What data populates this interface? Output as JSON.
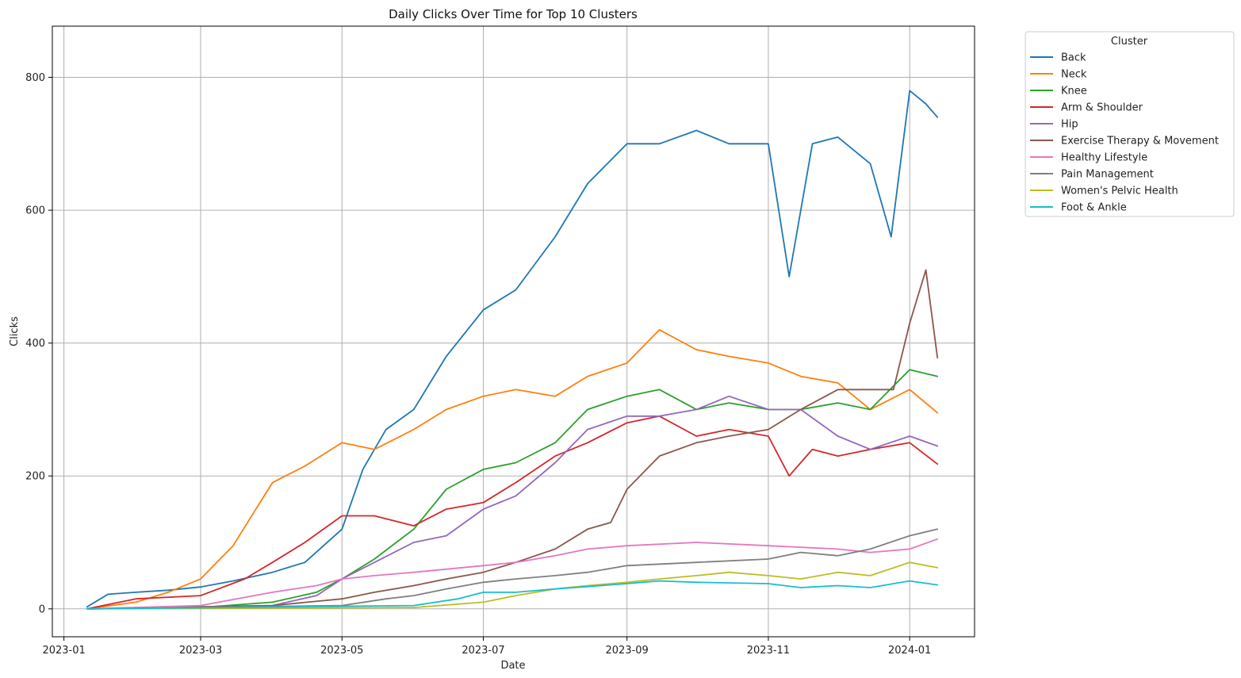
{
  "chart_data": {
    "type": "line",
    "title": "Daily Clicks Over Time for Top 10 Clusters",
    "xlabel": "Date",
    "ylabel": "Clicks",
    "x_type": "date",
    "xlim": [
      "2022-12-27",
      "2024-01-29"
    ],
    "ylim": [
      -42,
      877
    ],
    "xticks": [
      "2023-01-01",
      "2023-03-01",
      "2023-05-01",
      "2023-07-01",
      "2023-09-01",
      "2023-11-01",
      "2024-01-01"
    ],
    "xtick_labels": [
      "2023-01",
      "2023-03",
      "2023-05",
      "2023-07",
      "2023-09",
      "2023-11",
      "2024-01"
    ],
    "yticks": [
      0,
      200,
      400,
      600,
      800
    ],
    "grid": true,
    "legend": {
      "title": "Cluster",
      "placement": "outside upper right"
    },
    "series": [
      {
        "name": "Back",
        "color": "#1f77b4",
        "points": [
          [
            "2023-01-11",
            3
          ],
          [
            "2023-01-20",
            22
          ],
          [
            "2023-02-01",
            25
          ],
          [
            "2023-02-15",
            28
          ],
          [
            "2023-03-01",
            33
          ],
          [
            "2023-03-15",
            42
          ],
          [
            "2023-04-01",
            55
          ],
          [
            "2023-04-15",
            70
          ],
          [
            "2023-05-01",
            120
          ],
          [
            "2023-05-10",
            210
          ],
          [
            "2023-05-20",
            270
          ],
          [
            "2023-06-01",
            300
          ],
          [
            "2023-06-15",
            380
          ],
          [
            "2023-07-01",
            450
          ],
          [
            "2023-07-15",
            480
          ],
          [
            "2023-08-01",
            560
          ],
          [
            "2023-08-15",
            640
          ],
          [
            "2023-09-01",
            700
          ],
          [
            "2023-09-15",
            700
          ],
          [
            "2023-10-01",
            720
          ],
          [
            "2023-10-15",
            700
          ],
          [
            "2023-11-01",
            700
          ],
          [
            "2023-11-10",
            500
          ],
          [
            "2023-11-20",
            700
          ],
          [
            "2023-12-01",
            710
          ],
          [
            "2023-12-15",
            670
          ],
          [
            "2023-12-24",
            560
          ],
          [
            "2024-01-01",
            780
          ],
          [
            "2024-01-08",
            760
          ],
          [
            "2024-01-13",
            740
          ]
        ]
      },
      {
        "name": "Neck",
        "color": "#ff7f0e",
        "points": [
          [
            "2023-01-11",
            0
          ],
          [
            "2023-02-01",
            10
          ],
          [
            "2023-02-15",
            25
          ],
          [
            "2023-03-01",
            45
          ],
          [
            "2023-03-15",
            95
          ],
          [
            "2023-04-01",
            190
          ],
          [
            "2023-04-15",
            215
          ],
          [
            "2023-05-01",
            250
          ],
          [
            "2023-05-15",
            240
          ],
          [
            "2023-06-01",
            270
          ],
          [
            "2023-06-15",
            300
          ],
          [
            "2023-07-01",
            320
          ],
          [
            "2023-07-15",
            330
          ],
          [
            "2023-08-01",
            320
          ],
          [
            "2023-08-15",
            350
          ],
          [
            "2023-09-01",
            370
          ],
          [
            "2023-09-15",
            420
          ],
          [
            "2023-10-01",
            390
          ],
          [
            "2023-10-15",
            380
          ],
          [
            "2023-11-01",
            370
          ],
          [
            "2023-11-15",
            350
          ],
          [
            "2023-12-01",
            340
          ],
          [
            "2023-12-15",
            300
          ],
          [
            "2024-01-01",
            330
          ],
          [
            "2024-01-13",
            295
          ]
        ]
      },
      {
        "name": "Knee",
        "color": "#2ca02c",
        "points": [
          [
            "2023-01-11",
            0
          ],
          [
            "2023-03-01",
            2
          ],
          [
            "2023-04-01",
            10
          ],
          [
            "2023-04-20",
            25
          ],
          [
            "2023-05-01",
            45
          ],
          [
            "2023-05-15",
            75
          ],
          [
            "2023-06-01",
            120
          ],
          [
            "2023-06-15",
            180
          ],
          [
            "2023-07-01",
            210
          ],
          [
            "2023-07-15",
            220
          ],
          [
            "2023-08-01",
            250
          ],
          [
            "2023-08-15",
            300
          ],
          [
            "2023-09-01",
            320
          ],
          [
            "2023-09-15",
            330
          ],
          [
            "2023-10-01",
            300
          ],
          [
            "2023-10-15",
            310
          ],
          [
            "2023-11-01",
            300
          ],
          [
            "2023-11-15",
            300
          ],
          [
            "2023-12-01",
            310
          ],
          [
            "2023-12-15",
            300
          ],
          [
            "2024-01-01",
            360
          ],
          [
            "2024-01-13",
            350
          ]
        ]
      },
      {
        "name": "Arm & Shoulder",
        "color": "#d62728",
        "points": [
          [
            "2023-01-11",
            0
          ],
          [
            "2023-02-01",
            15
          ],
          [
            "2023-03-01",
            20
          ],
          [
            "2023-03-20",
            45
          ],
          [
            "2023-04-01",
            70
          ],
          [
            "2023-04-15",
            100
          ],
          [
            "2023-05-01",
            140
          ],
          [
            "2023-05-15",
            140
          ],
          [
            "2023-06-01",
            125
          ],
          [
            "2023-06-15",
            150
          ],
          [
            "2023-07-01",
            160
          ],
          [
            "2023-07-15",
            190
          ],
          [
            "2023-08-01",
            230
          ],
          [
            "2023-08-15",
            250
          ],
          [
            "2023-09-01",
            280
          ],
          [
            "2023-09-15",
            290
          ],
          [
            "2023-10-01",
            260
          ],
          [
            "2023-10-15",
            270
          ],
          [
            "2023-11-01",
            260
          ],
          [
            "2023-11-10",
            200
          ],
          [
            "2023-11-20",
            240
          ],
          [
            "2023-12-01",
            230
          ],
          [
            "2023-12-15",
            240
          ],
          [
            "2024-01-01",
            250
          ],
          [
            "2024-01-13",
            218
          ]
        ]
      },
      {
        "name": "Hip",
        "color": "#9467bd",
        "points": [
          [
            "2023-01-11",
            0
          ],
          [
            "2023-04-01",
            5
          ],
          [
            "2023-04-20",
            20
          ],
          [
            "2023-05-01",
            45
          ],
          [
            "2023-05-15",
            70
          ],
          [
            "2023-06-01",
            100
          ],
          [
            "2023-06-15",
            110
          ],
          [
            "2023-07-01",
            150
          ],
          [
            "2023-07-15",
            170
          ],
          [
            "2023-08-01",
            220
          ],
          [
            "2023-08-15",
            270
          ],
          [
            "2023-09-01",
            290
          ],
          [
            "2023-09-15",
            290
          ],
          [
            "2023-10-01",
            300
          ],
          [
            "2023-10-15",
            320
          ],
          [
            "2023-11-01",
            300
          ],
          [
            "2023-11-15",
            300
          ],
          [
            "2023-12-01",
            260
          ],
          [
            "2023-12-15",
            240
          ],
          [
            "2024-01-01",
            260
          ],
          [
            "2024-01-13",
            245
          ]
        ]
      },
      {
        "name": "Exercise Therapy & Movement",
        "color": "#8c564b",
        "points": [
          [
            "2023-01-11",
            0
          ],
          [
            "2023-04-01",
            5
          ],
          [
            "2023-05-01",
            15
          ],
          [
            "2023-05-15",
            25
          ],
          [
            "2023-06-01",
            35
          ],
          [
            "2023-06-15",
            45
          ],
          [
            "2023-07-01",
            55
          ],
          [
            "2023-07-15",
            70
          ],
          [
            "2023-08-01",
            90
          ],
          [
            "2023-08-15",
            120
          ],
          [
            "2023-08-25",
            130
          ],
          [
            "2023-09-01",
            180
          ],
          [
            "2023-09-15",
            230
          ],
          [
            "2023-10-01",
            250
          ],
          [
            "2023-10-15",
            260
          ],
          [
            "2023-11-01",
            270
          ],
          [
            "2023-11-15",
            300
          ],
          [
            "2023-12-01",
            330
          ],
          [
            "2023-12-15",
            330
          ],
          [
            "2023-12-25",
            330
          ],
          [
            "2024-01-01",
            430
          ],
          [
            "2024-01-08",
            510
          ],
          [
            "2024-01-13",
            378
          ]
        ]
      },
      {
        "name": "Healthy Lifestyle",
        "color": "#e377c2",
        "points": [
          [
            "2023-01-11",
            0
          ],
          [
            "2023-03-01",
            5
          ],
          [
            "2023-04-01",
            25
          ],
          [
            "2023-04-20",
            35
          ],
          [
            "2023-05-01",
            45
          ],
          [
            "2023-05-15",
            50
          ],
          [
            "2023-06-01",
            55
          ],
          [
            "2023-07-01",
            65
          ],
          [
            "2023-07-15",
            70
          ],
          [
            "2023-08-01",
            80
          ],
          [
            "2023-08-15",
            90
          ],
          [
            "2023-09-01",
            95
          ],
          [
            "2023-10-01",
            100
          ],
          [
            "2023-11-01",
            95
          ],
          [
            "2023-12-01",
            90
          ],
          [
            "2023-12-15",
            85
          ],
          [
            "2024-01-01",
            90
          ],
          [
            "2024-01-13",
            105
          ]
        ]
      },
      {
        "name": "Pain Management",
        "color": "#7f7f7f",
        "points": [
          [
            "2023-01-11",
            0
          ],
          [
            "2023-05-01",
            5
          ],
          [
            "2023-05-20",
            15
          ],
          [
            "2023-06-01",
            20
          ],
          [
            "2023-06-15",
            30
          ],
          [
            "2023-07-01",
            40
          ],
          [
            "2023-07-15",
            45
          ],
          [
            "2023-08-01",
            50
          ],
          [
            "2023-08-15",
            55
          ],
          [
            "2023-09-01",
            65
          ],
          [
            "2023-10-01",
            70
          ],
          [
            "2023-11-01",
            75
          ],
          [
            "2023-11-15",
            85
          ],
          [
            "2023-12-01",
            80
          ],
          [
            "2023-12-15",
            90
          ],
          [
            "2024-01-01",
            110
          ],
          [
            "2024-01-13",
            120
          ]
        ]
      },
      {
        "name": "Women's Pelvic Health",
        "color": "#bcbd22",
        "points": [
          [
            "2023-01-11",
            0
          ],
          [
            "2023-06-01",
            2
          ],
          [
            "2023-07-01",
            10
          ],
          [
            "2023-07-15",
            20
          ],
          [
            "2023-08-01",
            30
          ],
          [
            "2023-08-15",
            35
          ],
          [
            "2023-09-01",
            40
          ],
          [
            "2023-09-15",
            45
          ],
          [
            "2023-10-01",
            50
          ],
          [
            "2023-10-15",
            55
          ],
          [
            "2023-11-01",
            50
          ],
          [
            "2023-11-15",
            45
          ],
          [
            "2023-12-01",
            55
          ],
          [
            "2023-12-15",
            50
          ],
          [
            "2024-01-01",
            70
          ],
          [
            "2024-01-13",
            62
          ]
        ]
      },
      {
        "name": "Foot & Ankle",
        "color": "#17becf",
        "points": [
          [
            "2023-01-11",
            0
          ],
          [
            "2023-06-01",
            5
          ],
          [
            "2023-06-20",
            15
          ],
          [
            "2023-07-01",
            25
          ],
          [
            "2023-07-15",
            25
          ],
          [
            "2023-08-01",
            30
          ],
          [
            "2023-09-01",
            38
          ],
          [
            "2023-09-15",
            42
          ],
          [
            "2023-10-01",
            40
          ],
          [
            "2023-11-01",
            38
          ],
          [
            "2023-11-15",
            32
          ],
          [
            "2023-12-01",
            35
          ],
          [
            "2023-12-15",
            32
          ],
          [
            "2024-01-01",
            42
          ],
          [
            "2024-01-13",
            36
          ]
        ]
      }
    ]
  }
}
